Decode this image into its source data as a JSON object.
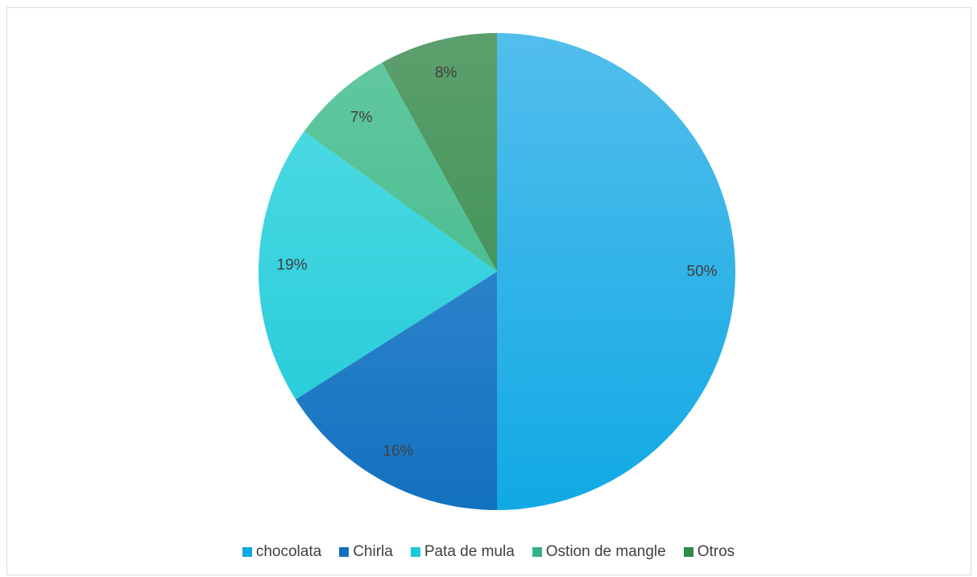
{
  "chart_data": {
    "type": "pie",
    "title": "",
    "start_angle_deg": 0,
    "direction": "clockwise",
    "slices": [
      {
        "label": "chocolata",
        "value": 50,
        "display": "50%",
        "color": "#11A9E4",
        "color_light": "#52BEEC"
      },
      {
        "label": "Chirla",
        "value": 16,
        "display": "16%",
        "color": "#1271BF",
        "color_light": "#4594D6"
      },
      {
        "label": "Pata de mula",
        "value": 19,
        "display": "19%",
        "color": "#1CC9D6",
        "color_light": "#55DCE6"
      },
      {
        "label": "Ostion de mangle",
        "value": 7,
        "display": "7%",
        "color": "#37B285",
        "color_light": "#64C9A1"
      },
      {
        "label": "Otros",
        "value": 8,
        "display": "8%",
        "color": "#2E8B4A",
        "color_light": "#5C9F6D"
      }
    ],
    "legend_position": "bottom"
  }
}
